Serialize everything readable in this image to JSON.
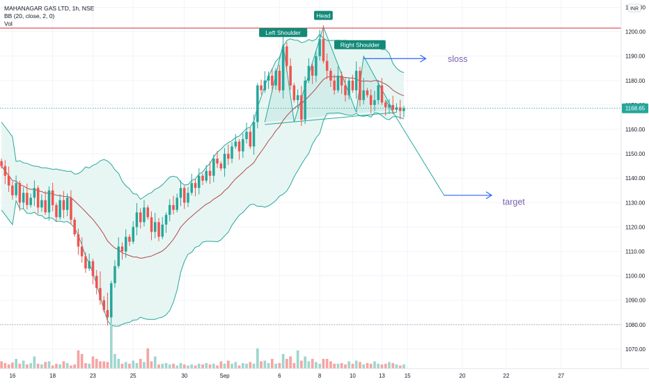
{
  "header": {
    "symbol_line": "MAHANAGAR GAS LTD, 1h, NSE",
    "indicator_bb": "BB (20, close, 2, 0)",
    "indicator_vol": "Vol"
  },
  "currency_badge": "INR",
  "colors": {
    "up": "#26a69a",
    "down": "#ef5350",
    "vol_up": "#9fd6cf",
    "vol_down": "#f5a5a3",
    "bb_band": "#26a69a",
    "bb_basis": "#b2464b",
    "bb_fill": "#e3f5f1",
    "resistance_line": "#e25a5a",
    "arrow": "#2962ff",
    "annotation_text": "#7b5fb0",
    "pattern_line": "#26a69a",
    "axis_text": "#131722"
  },
  "chart_data": {
    "type": "candlestick",
    "symbol": "MAHANAGAR GAS LTD",
    "interval": "1h",
    "exchange": "NSE",
    "currency": "INR",
    "y_axis": {
      "ticks": [
        1070.0,
        1080.0,
        1090.0,
        1100.0,
        1110.0,
        1120.0,
        1130.0,
        1140.0,
        1150.0,
        1160.0,
        1170.0,
        1180.0,
        1190.0,
        1200.0,
        1210.0
      ],
      "range": [
        1062,
        1213
      ]
    },
    "x_axis": {
      "labels": [
        {
          "label": "16",
          "i": 3
        },
        {
          "label": "18",
          "i": 14
        },
        {
          "label": "23",
          "i": 25
        },
        {
          "label": "25",
          "i": 36
        },
        {
          "label": "30",
          "i": 50
        },
        {
          "label": "Sep",
          "i": 61
        },
        {
          "label": "6",
          "i": 76
        },
        {
          "label": "8",
          "i": 87
        },
        {
          "label": "10",
          "i": 96
        },
        {
          "label": "13",
          "i": 104
        },
        {
          "label": "15",
          "i": 111
        },
        {
          "label": "20",
          "i": 126
        },
        {
          "label": "22",
          "i": 138
        },
        {
          "label": "27",
          "i": 153
        }
      ],
      "range": [
        -0.4,
        169.4
      ]
    },
    "last_price": 1168.65,
    "last_price_label": "1168.65",
    "candles_close": [
      1145,
      1141,
      1137,
      1133,
      1138,
      1130,
      1134,
      1129,
      1132,
      1136,
      1128,
      1131,
      1126,
      1135,
      1129,
      1124,
      1131,
      1127,
      1132,
      1123,
      1117,
      1112,
      1108,
      1103,
      1106,
      1100,
      1095,
      1090,
      1086,
      1083,
      1097,
      1104,
      1112,
      1110,
      1116,
      1114,
      1120,
      1126,
      1122,
      1128,
      1124,
      1118,
      1122,
      1116,
      1121,
      1125,
      1129,
      1127,
      1132,
      1136,
      1130,
      1134,
      1138,
      1136,
      1141,
      1139,
      1143,
      1141,
      1148,
      1146,
      1144,
      1150,
      1148,
      1153,
      1155,
      1151,
      1156,
      1159,
      1153,
      1163,
      1178,
      1176,
      1180,
      1182,
      1178,
      1184,
      1176,
      1194,
      1186,
      1178,
      1172,
      1174,
      1164,
      1180,
      1186,
      1182,
      1190,
      1197,
      1188,
      1184,
      1180,
      1176,
      1182,
      1178,
      1174,
      1180,
      1176,
      1184,
      1172,
      1176,
      1174,
      1170,
      1172,
      1178,
      1171,
      1169,
      1170,
      1168,
      1169,
      1167.5,
      1168.65
    ],
    "candles_open_seed": "prev-close",
    "volume": [
      3.0,
      2.3,
      1.7,
      2.5,
      4.0,
      2.0,
      3.3,
      1.7,
      2.3,
      5.0,
      2.0,
      1.7,
      2.7,
      3.0,
      1.3,
      2.0,
      1.7,
      3.0,
      2.3,
      1.3,
      1.7,
      7.5,
      6.0,
      2.3,
      2.0,
      5.0,
      4.0,
      3.0,
      3.0,
      2.7,
      17.5,
      6.0,
      4.0,
      2.0,
      2.7,
      2.0,
      3.3,
      2.3,
      4.0,
      2.7,
      8.3,
      3.0,
      5.0,
      1.7,
      2.0,
      2.3,
      1.7,
      2.0,
      1.3,
      2.3,
      1.7,
      1.3,
      1.7,
      1.3,
      2.0,
      1.7,
      2.3,
      1.7,
      2.0,
      1.3,
      3.0,
      2.0,
      3.3,
      2.0,
      2.7,
      1.3,
      2.3,
      2.0,
      2.7,
      2.0,
      8.3,
      3.0,
      3.3,
      2.3,
      4.0,
      2.0,
      2.3,
      6.0,
      4.0,
      5.0,
      2.3,
      7.5,
      3.3,
      5.0,
      3.0,
      4.0,
      2.7,
      2.0,
      4.0,
      4.0,
      3.0,
      2.0,
      2.0,
      2.3,
      1.7,
      3.0,
      2.0,
      3.3,
      2.7,
      1.7,
      2.3,
      2.0,
      3.0,
      2.0,
      1.7,
      2.0,
      2.7,
      2.3,
      1.7,
      1.3,
      1.7
    ],
    "volume_scale_max": 20,
    "bollinger": {
      "length": 20,
      "source": "close",
      "mult": 2,
      "offset": 0
    },
    "annotations": {
      "left_shoulder": {
        "label": "Left Shoulder",
        "i": 77,
        "price": 1195
      },
      "head": {
        "label": "Head",
        "i": 88,
        "price": 1202
      },
      "right_shoulder": {
        "label": "Right Shoulder",
        "i": 98,
        "price": 1190
      },
      "pattern_path": [
        {
          "i": 72,
          "price": 1163
        },
        {
          "i": 77,
          "price": 1195
        },
        {
          "i": 80,
          "price": 1163
        },
        {
          "i": 88,
          "price": 1202
        },
        {
          "i": 97,
          "price": 1167
        },
        {
          "i": 99,
          "price": 1190
        },
        {
          "i": 107,
          "price": 1168
        }
      ],
      "neckline": [
        {
          "i": 72,
          "price": 1162
        },
        {
          "i": 108,
          "price": 1167
        }
      ],
      "resistance_price": 1201.5,
      "projection": [
        {
          "i": 105,
          "price": 1172
        },
        {
          "i": 121,
          "price": 1133
        }
      ],
      "sloss": {
        "label": "sloss",
        "from_i": 99,
        "to_i": 116,
        "price": 1189,
        "text_i": 122,
        "text_price": 1189
      },
      "target": {
        "label": "target",
        "from_i": 121,
        "to_i": 134,
        "price": 1133,
        "text_i": 137,
        "text_price": 1130.5
      },
      "dotted_lines": [
        1168.65,
        1080
      ]
    }
  }
}
